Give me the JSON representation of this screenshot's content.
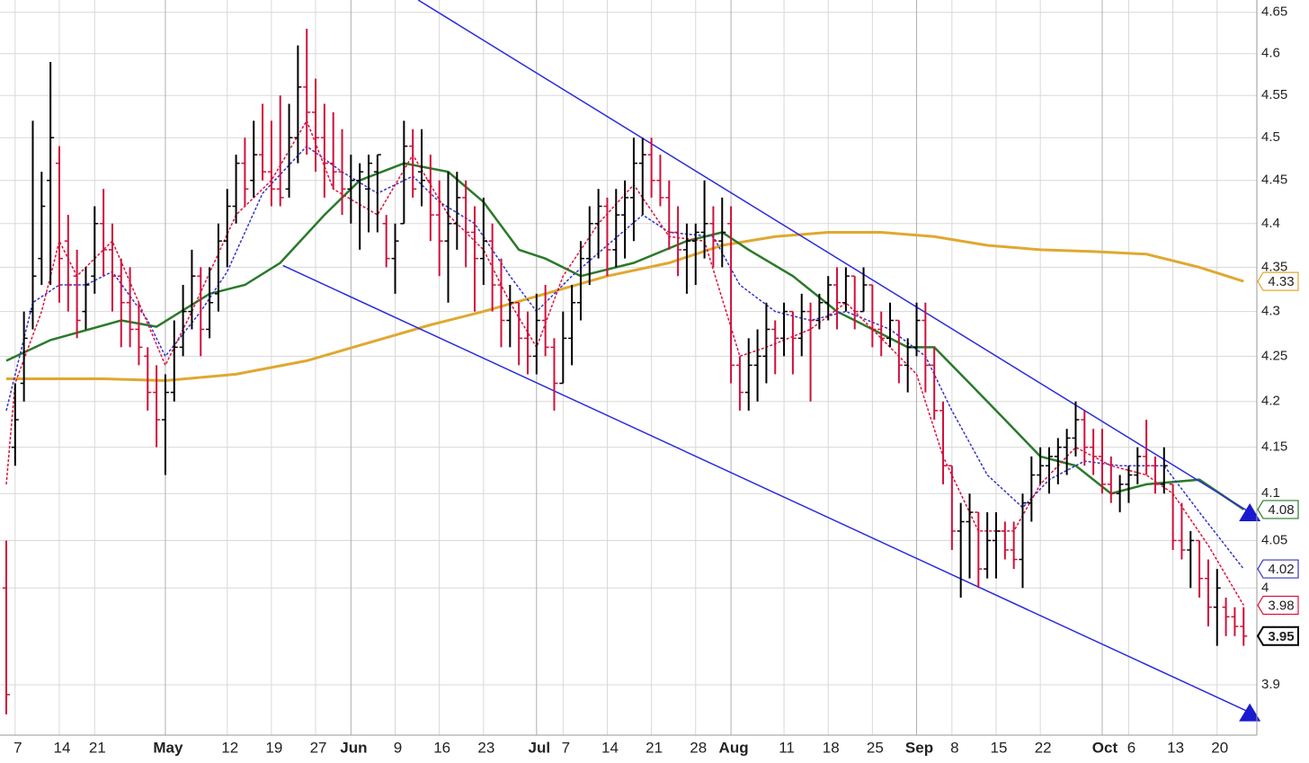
{
  "chart_data": {
    "type": "ohlc",
    "log_scale": true,
    "grid": true,
    "xlim": [
      -0.71,
      141.5
    ],
    "ylim": [
      3.849,
      4.665
    ],
    "yticks": [
      3.9,
      4,
      4.05,
      4.1,
      4.15,
      4.2,
      4.25,
      4.3,
      4.35,
      4.4,
      4.45,
      4.5,
      4.55,
      4.6,
      4.65
    ],
    "xticks": [
      {
        "value": 1,
        "label": "7"
      },
      {
        "value": 6,
        "label": "14"
      },
      {
        "value": 10,
        "label": "21"
      },
      {
        "value": 18,
        "label": "May"
      },
      {
        "value": 25,
        "label": "12"
      },
      {
        "value": 30,
        "label": "19"
      },
      {
        "value": 35,
        "label": "27"
      },
      {
        "value": 39,
        "label": "Jun"
      },
      {
        "value": 44,
        "label": "9"
      },
      {
        "value": 49,
        "label": "16"
      },
      {
        "value": 54,
        "label": "23"
      },
      {
        "value": 60,
        "label": "Jul"
      },
      {
        "value": 63,
        "label": "7"
      },
      {
        "value": 68,
        "label": "14"
      },
      {
        "value": 73,
        "label": "21"
      },
      {
        "value": 78,
        "label": "28"
      },
      {
        "value": 82,
        "label": "Aug"
      },
      {
        "value": 88,
        "label": "11"
      },
      {
        "value": 93,
        "label": "18"
      },
      {
        "value": 98,
        "label": "25"
      },
      {
        "value": 103,
        "label": "Sep"
      },
      {
        "value": 107,
        "label": "8"
      },
      {
        "value": 112,
        "label": "15"
      },
      {
        "value": 117,
        "label": "22"
      },
      {
        "value": 124,
        "label": "Oct"
      },
      {
        "value": 127,
        "label": "6"
      },
      {
        "value": 132,
        "label": "13"
      },
      {
        "value": 137,
        "label": "20"
      }
    ],
    "up_color": "#000000",
    "down_color": "#d0103a",
    "last_close_label": "3.95",
    "ohlc": [
      [
        4.0,
        4.05,
        3.87,
        3.89
      ],
      [
        4.15,
        4.22,
        4.13,
        4.18
      ],
      [
        4.22,
        4.3,
        4.2,
        4.27
      ],
      [
        4.3,
        4.52,
        4.28,
        4.34
      ],
      [
        4.36,
        4.46,
        4.33,
        4.42
      ],
      [
        4.45,
        4.59,
        4.33,
        4.5
      ],
      [
        4.47,
        4.49,
        4.31,
        4.36
      ],
      [
        4.38,
        4.41,
        4.3,
        4.33
      ],
      [
        4.34,
        4.37,
        4.27,
        4.29
      ],
      [
        4.3,
        4.35,
        4.28,
        4.33
      ],
      [
        4.34,
        4.42,
        4.32,
        4.4
      ],
      [
        4.4,
        4.44,
        4.34,
        4.37
      ],
      [
        4.37,
        4.4,
        4.3,
        4.34
      ],
      [
        4.34,
        4.36,
        4.26,
        4.31
      ],
      [
        4.31,
        4.35,
        4.26,
        4.28
      ],
      [
        4.28,
        4.31,
        4.24,
        4.26
      ],
      [
        4.25,
        4.26,
        4.19,
        4.21
      ],
      [
        4.21,
        4.24,
        4.15,
        4.18
      ],
      [
        4.18,
        4.23,
        4.12,
        4.21
      ],
      [
        4.21,
        4.29,
        4.2,
        4.26
      ],
      [
        4.26,
        4.33,
        4.25,
        4.3
      ],
      [
        4.3,
        4.37,
        4.28,
        4.34
      ],
      [
        4.34,
        4.35,
        4.25,
        4.28
      ],
      [
        4.28,
        4.35,
        4.27,
        4.31
      ],
      [
        4.32,
        4.4,
        4.3,
        4.38
      ],
      [
        4.38,
        4.44,
        4.35,
        4.42
      ],
      [
        4.42,
        4.48,
        4.4,
        4.47
      ],
      [
        4.47,
        4.5,
        4.42,
        4.44
      ],
      [
        4.45,
        4.52,
        4.43,
        4.48
      ],
      [
        4.48,
        4.54,
        4.45,
        4.46
      ],
      [
        4.46,
        4.52,
        4.42,
        4.44
      ],
      [
        4.44,
        4.55,
        4.42,
        4.43
      ],
      [
        4.44,
        4.54,
        4.43,
        4.5
      ],
      [
        4.5,
        4.61,
        4.47,
        4.56
      ],
      [
        4.56,
        4.63,
        4.48,
        4.53
      ],
      [
        4.53,
        4.57,
        4.46,
        4.5
      ],
      [
        4.5,
        4.54,
        4.43,
        4.47
      ],
      [
        4.47,
        4.53,
        4.44,
        4.46
      ],
      [
        4.46,
        4.51,
        4.41,
        4.44
      ],
      [
        4.44,
        4.48,
        4.4,
        4.45
      ],
      [
        4.45,
        4.47,
        4.37,
        4.46
      ],
      [
        4.44,
        4.48,
        4.39,
        4.47
      ],
      [
        4.46,
        4.48,
        4.39,
        4.48
      ],
      [
        4.4,
        4.41,
        4.35,
        4.36
      ],
      [
        4.36,
        4.4,
        4.32,
        4.38
      ],
      [
        4.4,
        4.52,
        4.4,
        4.49
      ],
      [
        4.49,
        4.51,
        4.43,
        4.44
      ],
      [
        4.46,
        4.51,
        4.42,
        4.45
      ],
      [
        4.45,
        4.48,
        4.38,
        4.41
      ],
      [
        4.41,
        4.45,
        4.34,
        4.38
      ],
      [
        4.38,
        4.46,
        4.31,
        4.4
      ],
      [
        4.4,
        4.46,
        4.37,
        4.43
      ],
      [
        4.43,
        4.45,
        4.35,
        4.39
      ],
      [
        4.39,
        4.42,
        4.3,
        4.36
      ],
      [
        4.36,
        4.43,
        4.33,
        4.38
      ],
      [
        4.38,
        4.4,
        4.3,
        4.33
      ],
      [
        4.33,
        4.36,
        4.26,
        4.29
      ],
      [
        4.29,
        4.33,
        4.26,
        4.31
      ],
      [
        4.31,
        4.31,
        4.24,
        4.27
      ],
      [
        4.27,
        4.3,
        4.23,
        4.25
      ],
      [
        4.25,
        4.32,
        4.23,
        4.29
      ],
      [
        4.29,
        4.33,
        4.25,
        4.26
      ],
      [
        4.26,
        4.27,
        4.19,
        4.22
      ],
      [
        4.22,
        4.3,
        4.22,
        4.27
      ],
      [
        4.27,
        4.33,
        4.24,
        4.31
      ],
      [
        4.31,
        4.38,
        4.29,
        4.36
      ],
      [
        4.36,
        4.42,
        4.33,
        4.4
      ],
      [
        4.4,
        4.44,
        4.36,
        4.42
      ],
      [
        4.42,
        4.43,
        4.34,
        4.37
      ],
      [
        4.37,
        4.44,
        4.35,
        4.41
      ],
      [
        4.41,
        4.45,
        4.36,
        4.43
      ],
      [
        4.43,
        4.5,
        4.38,
        4.47
      ],
      [
        4.47,
        4.5,
        4.41,
        4.48
      ],
      [
        4.48,
        4.5,
        4.43,
        4.45
      ],
      [
        4.45,
        4.48,
        4.42,
        4.43
      ],
      [
        4.43,
        4.45,
        4.37,
        4.39
      ],
      [
        4.39,
        4.42,
        4.34,
        4.37
      ],
      [
        4.37,
        4.4,
        4.32,
        4.38
      ],
      [
        4.38,
        4.4,
        4.33,
        4.39
      ],
      [
        4.39,
        4.45,
        4.36,
        4.4
      ],
      [
        4.4,
        4.42,
        4.35,
        4.38
      ],
      [
        4.38,
        4.43,
        4.35,
        4.39
      ],
      [
        4.4,
        4.42,
        4.22,
        4.24
      ],
      [
        4.24,
        4.25,
        4.19,
        4.21
      ],
      [
        4.21,
        4.27,
        4.19,
        4.24
      ],
      [
        4.24,
        4.28,
        4.2,
        4.25
      ],
      [
        4.25,
        4.31,
        4.22,
        4.28
      ],
      [
        4.28,
        4.29,
        4.23,
        4.27
      ],
      [
        4.27,
        4.31,
        4.25,
        4.3
      ],
      [
        4.3,
        4.3,
        4.23,
        4.27
      ],
      [
        4.27,
        4.32,
        4.25,
        4.3
      ],
      [
        4.3,
        4.31,
        4.2,
        4.29
      ],
      [
        4.29,
        4.32,
        4.28,
        4.31
      ],
      [
        4.31,
        4.34,
        4.29,
        4.33
      ],
      [
        4.33,
        4.35,
        4.28,
        4.31
      ],
      [
        4.31,
        4.35,
        4.3,
        4.34
      ],
      [
        4.34,
        4.34,
        4.28,
        4.3
      ],
      [
        4.3,
        4.35,
        4.3,
        4.33
      ],
      [
        4.33,
        4.33,
        4.26,
        4.28
      ],
      [
        4.28,
        4.3,
        4.25,
        4.27
      ],
      [
        4.27,
        4.31,
        4.26,
        4.29
      ],
      [
        4.29,
        4.29,
        4.22,
        4.24
      ],
      [
        4.24,
        4.27,
        4.21,
        4.26
      ],
      [
        4.26,
        4.31,
        4.25,
        4.29
      ],
      [
        4.29,
        4.31,
        4.21,
        4.24
      ],
      [
        4.24,
        4.26,
        4.18,
        4.19
      ],
      [
        4.19,
        4.2,
        4.11,
        4.13
      ],
      [
        4.13,
        4.13,
        4.04,
        4.06
      ],
      [
        4.06,
        4.09,
        3.99,
        4.07
      ],
      [
        4.07,
        4.1,
        4.01,
        4.08
      ],
      [
        4.08,
        4.08,
        4.0,
        4.02
      ],
      [
        4.02,
        4.08,
        4.01,
        4.05
      ],
      [
        4.05,
        4.08,
        4.01,
        4.06
      ],
      [
        4.06,
        4.07,
        4.03,
        4.04
      ],
      [
        4.04,
        4.07,
        4.02,
        4.03
      ],
      [
        4.03,
        4.1,
        4.0,
        4.09
      ],
      [
        4.09,
        4.14,
        4.07,
        4.12
      ],
      [
        4.12,
        4.15,
        4.11,
        4.13
      ],
      [
        4.13,
        4.15,
        4.1,
        4.14
      ],
      [
        4.14,
        4.16,
        4.11,
        4.15
      ],
      [
        4.15,
        4.17,
        4.12,
        4.16
      ],
      [
        4.16,
        4.2,
        4.14,
        4.18
      ],
      [
        4.18,
        4.19,
        4.13,
        4.15
      ],
      [
        4.15,
        4.17,
        4.12,
        4.14
      ],
      [
        4.14,
        4.17,
        4.1,
        4.11
      ],
      [
        4.11,
        4.14,
        4.09,
        4.1
      ],
      [
        4.1,
        4.12,
        4.08,
        4.11
      ],
      [
        4.11,
        4.13,
        4.09,
        4.12
      ],
      [
        4.12,
        4.15,
        4.11,
        4.14
      ],
      [
        4.14,
        4.18,
        4.12,
        4.13
      ],
      [
        4.13,
        4.14,
        4.1,
        4.11
      ],
      [
        4.11,
        4.15,
        4.1,
        4.13
      ],
      [
        4.11,
        4.11,
        4.04,
        4.05
      ],
      [
        4.05,
        4.09,
        4.03,
        4.04
      ],
      [
        4.04,
        4.06,
        4.0,
        4.05
      ],
      [
        4.05,
        4.05,
        3.99,
        4.01
      ],
      [
        4.01,
        4.03,
        3.96,
        3.98
      ],
      [
        3.98,
        4.02,
        3.94,
        4.0
      ],
      [
        3.98,
        3.99,
        3.95,
        3.97
      ],
      [
        3.97,
        3.98,
        3.95,
        3.96
      ],
      [
        3.96,
        3.98,
        3.94,
        3.95
      ]
    ],
    "series": [
      {
        "color": "#e0a830",
        "dash": false,
        "width": 3,
        "end_label": "4.33",
        "x": [
          0,
          11,
          18,
          26,
          34,
          41,
          48,
          54,
          61,
          68,
          75,
          81,
          87,
          93,
          99,
          105,
          111,
          117,
          123,
          129,
          135,
          140
        ],
        "values": [
          4.225,
          4.225,
          4.223,
          4.23,
          4.245,
          4.265,
          4.285,
          4.3,
          4.32,
          4.34,
          4.355,
          4.375,
          4.385,
          4.39,
          4.39,
          4.385,
          4.375,
          4.37,
          4.368,
          4.365,
          4.35,
          4.334
        ]
      },
      {
        "color": "#2a7a2a",
        "dash": false,
        "width": 2.5,
        "end_label": "4.08",
        "x": [
          0,
          5,
          13,
          17,
          23,
          27,
          31,
          36,
          40,
          45,
          50,
          54,
          58,
          61,
          65,
          71,
          77,
          81,
          84,
          89,
          94,
          98,
          102,
          105,
          109,
          113,
          117,
          121,
          125,
          129,
          135,
          140
        ],
        "values": [
          4.245,
          4.268,
          4.29,
          4.283,
          4.32,
          4.33,
          4.355,
          4.41,
          4.45,
          4.47,
          4.46,
          4.425,
          4.37,
          4.36,
          4.34,
          4.355,
          4.38,
          4.39,
          4.37,
          4.34,
          4.3,
          4.28,
          4.26,
          4.26,
          4.22,
          4.18,
          4.14,
          4.13,
          4.1,
          4.11,
          4.115,
          4.083
        ]
      },
      {
        "color": "#3333cc",
        "dash": true,
        "width": 1.5,
        "end_label": "4.02",
        "x": [
          0,
          3,
          6,
          9,
          12,
          16,
          18,
          22,
          25,
          29,
          34,
          38,
          42,
          46,
          49,
          53,
          57,
          60,
          64,
          68,
          72,
          75,
          80,
          83,
          87,
          91,
          95,
          100,
          104,
          107,
          111,
          115,
          118,
          122,
          126,
          131,
          135,
          140
        ],
        "values": [
          4.19,
          4.31,
          4.33,
          4.33,
          4.345,
          4.29,
          4.25,
          4.3,
          4.345,
          4.435,
          4.49,
          4.46,
          4.435,
          4.455,
          4.425,
          4.4,
          4.34,
          4.3,
          4.34,
          4.375,
          4.41,
          4.39,
          4.385,
          4.33,
          4.3,
          4.29,
          4.3,
          4.28,
          4.25,
          4.19,
          4.12,
          4.085,
          4.115,
          4.135,
          4.13,
          4.13,
          4.08,
          4.02
        ]
      },
      {
        "color": "#e0103c",
        "dash": true,
        "width": 1.5,
        "end_label": "3.98",
        "x": [
          0,
          1,
          4,
          6,
          8,
          12,
          15,
          18,
          21,
          26,
          30,
          34,
          37,
          42,
          46,
          50,
          54,
          57,
          60,
          63,
          67,
          71,
          75,
          79,
          83,
          86,
          91,
          95,
          99,
          103,
          106,
          110,
          114,
          117,
          121,
          125,
          129,
          132,
          136,
          140
        ],
        "values": [
          4.11,
          4.22,
          4.3,
          4.38,
          4.34,
          4.38,
          4.31,
          4.24,
          4.3,
          4.41,
          4.45,
          4.52,
          4.44,
          4.41,
          4.48,
          4.41,
          4.37,
          4.31,
          4.26,
          4.34,
          4.4,
          4.445,
          4.385,
          4.38,
          4.25,
          4.26,
          4.28,
          4.31,
          4.27,
          4.23,
          4.14,
          4.06,
          4.06,
          4.11,
          4.15,
          4.13,
          4.12,
          4.1,
          4.045,
          3.982
        ]
      }
    ],
    "trendlines": [
      {
        "color": "#2a2ae0",
        "x": [
          46.6,
          140.7
        ],
        "values": [
          4.665,
          4.08
        ]
      },
      {
        "color": "#2a2ae0",
        "x": [
          31.3,
          140.7
        ],
        "values": [
          4.352,
          3.872
        ]
      }
    ]
  }
}
